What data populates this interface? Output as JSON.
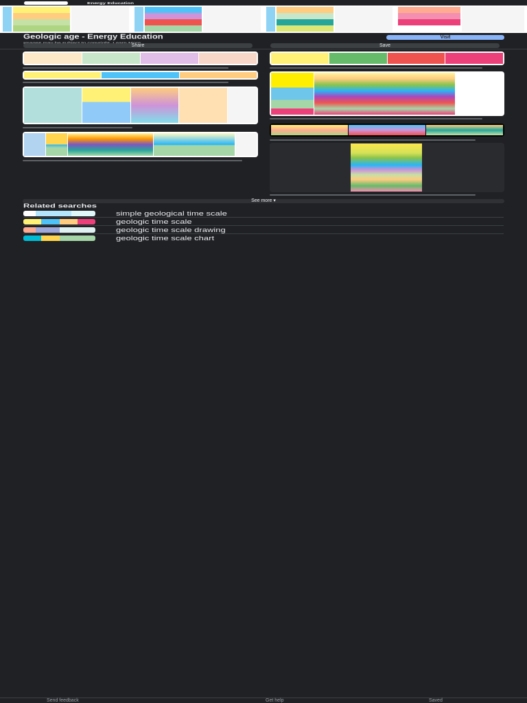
{
  "header": {
    "site": "Energy Education"
  },
  "result": {
    "title": "Geologic age - Energy Education",
    "notice": "Images may be subject to copyright. Learn More",
    "visit_label": "Visit",
    "share_label": "Share",
    "save_label": "Save"
  },
  "see_more_label": "See more",
  "related": {
    "heading": "Related searches",
    "items": [
      {
        "label": "simple geological time scale"
      },
      {
        "label": "geologic time scale"
      },
      {
        "label": "geologic time scale drawing"
      },
      {
        "label": "geologic time scale chart"
      }
    ]
  },
  "footer": {
    "feedback": "Send feedback",
    "help": "Get help",
    "saved": "Saved"
  },
  "colors": {
    "background": "#202124",
    "accent": "#8ab4f8",
    "chip": "#3c4043"
  }
}
